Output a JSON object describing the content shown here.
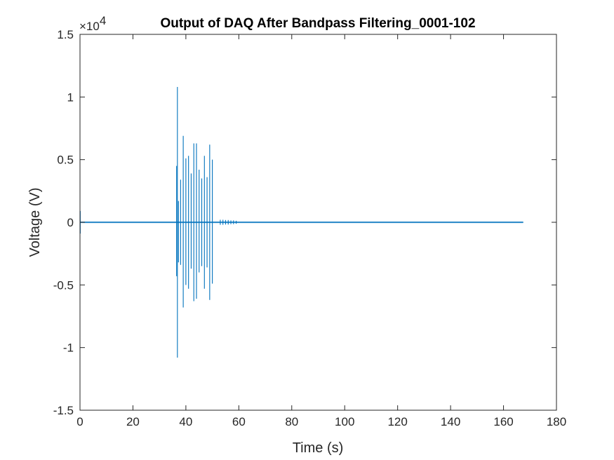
{
  "chart_data": {
    "type": "line",
    "title": "Output of DAQ After Bandpass Filtering_0001-102",
    "xlabel": "Time (s)",
    "ylabel": "Voltage (V)",
    "xlim": [
      0,
      180
    ],
    "ylim": [
      -15000,
      15000
    ],
    "x_ticks": [
      "0",
      "20",
      "40",
      "60",
      "80",
      "100",
      "120",
      "140",
      "160",
      "180"
    ],
    "y_ticks": [
      "-1.5",
      "-1",
      "-0.5",
      "0",
      "0.5",
      "1",
      "1.5"
    ],
    "y_exponent_base": "×10",
    "y_exponent_power": "4",
    "grid": false,
    "line_color": "#0072bd",
    "series": [
      {
        "x_range": [
          0,
          167.5
        ],
        "baseline_amplitude": 60,
        "spikes": [
          {
            "x": 0.1,
            "y_max": 900,
            "y_min": -900
          },
          {
            "x": 36.5,
            "y_max": 4500,
            "y_min": -4300
          },
          {
            "x": 36.8,
            "y_max": 10800,
            "y_min": -10800
          },
          {
            "x": 37.2,
            "y_max": 1700,
            "y_min": -3200
          },
          {
            "x": 38.0,
            "y_max": 3400,
            "y_min": -3400
          },
          {
            "x": 39.0,
            "y_max": 6900,
            "y_min": -6800
          },
          {
            "x": 40.0,
            "y_max": 5100,
            "y_min": -5000
          },
          {
            "x": 41.0,
            "y_max": 5300,
            "y_min": -5300
          },
          {
            "x": 42.0,
            "y_max": 3900,
            "y_min": -3700
          },
          {
            "x": 43.0,
            "y_max": 6300,
            "y_min": -6300
          },
          {
            "x": 44.0,
            "y_max": 6300,
            "y_min": -6100
          },
          {
            "x": 45.0,
            "y_max": 4200,
            "y_min": -4000
          },
          {
            "x": 46.0,
            "y_max": 3500,
            "y_min": -3500
          },
          {
            "x": 47.0,
            "y_max": 5300,
            "y_min": -5300
          },
          {
            "x": 48.0,
            "y_max": 3600,
            "y_min": -3600
          },
          {
            "x": 49.0,
            "y_max": 6200,
            "y_min": -6200
          },
          {
            "x": 50.0,
            "y_max": 5000,
            "y_min": -4900
          },
          {
            "x": 53.0,
            "y_max": 200,
            "y_min": -200
          },
          {
            "x": 54.0,
            "y_max": 200,
            "y_min": -200
          },
          {
            "x": 55.0,
            "y_max": 180,
            "y_min": -180
          },
          {
            "x": 56.0,
            "y_max": 180,
            "y_min": -180
          },
          {
            "x": 57.0,
            "y_max": 150,
            "y_min": -150
          },
          {
            "x": 58.0,
            "y_max": 150,
            "y_min": -150
          },
          {
            "x": 59.0,
            "y_max": 120,
            "y_min": -120
          }
        ]
      }
    ]
  }
}
